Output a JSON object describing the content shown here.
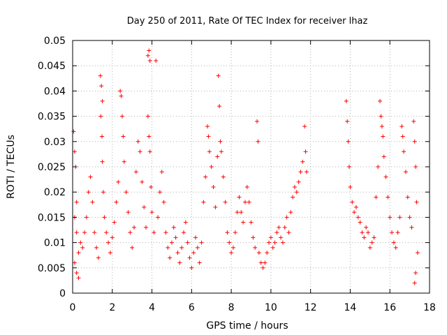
{
  "chart_data": {
    "type": "scatter",
    "title": "Day 250 of 2011, Rate Of TEC Index for receiver lhaz",
    "xlabel": "GPS time / hours",
    "ylabel": "ROTI / TECUs",
    "xlim": [
      0,
      18
    ],
    "ylim": [
      0,
      0.05
    ],
    "xticks": [
      0,
      2,
      4,
      6,
      8,
      10,
      12,
      14,
      16,
      18
    ],
    "xtick_labels": [
      "0",
      "2",
      "4",
      "6",
      "8",
      "10",
      "12",
      "14",
      "16",
      "18"
    ],
    "yticks": [
      0,
      0.005,
      0.01,
      0.015,
      0.02,
      0.025,
      0.03,
      0.035,
      0.04,
      0.045,
      0.05
    ],
    "ytick_labels": [
      "0",
      "0.005",
      "0.01",
      "0.015",
      "0.02",
      "0.025",
      "0.03",
      "0.035",
      "0.04",
      "0.045",
      "0.05"
    ],
    "grid": true,
    "marker": "plus",
    "color": "#ff0000",
    "series": [
      {
        "name": "ROTI",
        "points": [
          [
            0.05,
            0.032
          ],
          [
            0.1,
            0.028
          ],
          [
            0.15,
            0.025
          ],
          [
            0.2,
            0.018
          ],
          [
            0.1,
            0.015
          ],
          [
            0.2,
            0.012
          ],
          [
            0.3,
            0.008
          ],
          [
            0.1,
            0.006
          ],
          [
            0.2,
            0.004
          ],
          [
            0.3,
            0.003
          ],
          [
            0.4,
            0.01
          ],
          [
            0.5,
            0.009
          ],
          [
            0.6,
            0.012
          ],
          [
            0.7,
            0.015
          ],
          [
            0.8,
            0.02
          ],
          [
            0.9,
            0.023
          ],
          [
            1.0,
            0.018
          ],
          [
            1.1,
            0.012
          ],
          [
            1.2,
            0.009
          ],
          [
            1.3,
            0.007
          ],
          [
            1.4,
            0.043
          ],
          [
            1.45,
            0.041
          ],
          [
            1.5,
            0.038
          ],
          [
            1.42,
            0.035
          ],
          [
            1.48,
            0.031
          ],
          [
            1.5,
            0.026
          ],
          [
            1.55,
            0.02
          ],
          [
            1.6,
            0.015
          ],
          [
            1.7,
            0.012
          ],
          [
            1.8,
            0.01
          ],
          [
            1.9,
            0.008
          ],
          [
            2.0,
            0.011
          ],
          [
            2.1,
            0.014
          ],
          [
            2.2,
            0.018
          ],
          [
            2.3,
            0.022
          ],
          [
            2.4,
            0.04
          ],
          [
            2.45,
            0.039
          ],
          [
            2.5,
            0.035
          ],
          [
            2.55,
            0.031
          ],
          [
            2.6,
            0.026
          ],
          [
            2.7,
            0.02
          ],
          [
            2.8,
            0.016
          ],
          [
            2.9,
            0.012
          ],
          [
            3.0,
            0.009
          ],
          [
            3.1,
            0.013
          ],
          [
            3.2,
            0.024
          ],
          [
            3.3,
            0.03
          ],
          [
            3.4,
            0.028
          ],
          [
            3.5,
            0.022
          ],
          [
            3.6,
            0.017
          ],
          [
            3.7,
            0.013
          ],
          [
            3.8,
            0.047
          ],
          [
            3.85,
            0.048
          ],
          [
            3.9,
            0.046
          ],
          [
            3.8,
            0.035
          ],
          [
            3.85,
            0.031
          ],
          [
            3.9,
            0.028
          ],
          [
            3.95,
            0.021
          ],
          [
            4.0,
            0.016
          ],
          [
            4.1,
            0.012
          ],
          [
            4.2,
            0.046
          ],
          [
            4.3,
            0.015
          ],
          [
            4.4,
            0.02
          ],
          [
            4.5,
            0.024
          ],
          [
            4.6,
            0.018
          ],
          [
            4.7,
            0.012
          ],
          [
            4.8,
            0.009
          ],
          [
            4.9,
            0.007
          ],
          [
            5.0,
            0.01
          ],
          [
            5.1,
            0.013
          ],
          [
            5.2,
            0.011
          ],
          [
            5.3,
            0.008
          ],
          [
            5.4,
            0.006
          ],
          [
            5.5,
            0.009
          ],
          [
            5.6,
            0.012
          ],
          [
            5.7,
            0.014
          ],
          [
            5.8,
            0.01
          ],
          [
            5.9,
            0.007
          ],
          [
            6.0,
            0.005
          ],
          [
            6.1,
            0.008
          ],
          [
            6.2,
            0.011
          ],
          [
            6.3,
            0.009
          ],
          [
            6.4,
            0.006
          ],
          [
            6.5,
            0.01
          ],
          [
            6.6,
            0.018
          ],
          [
            6.7,
            0.023
          ],
          [
            6.8,
            0.033
          ],
          [
            6.85,
            0.031
          ],
          [
            6.9,
            0.028
          ],
          [
            7.0,
            0.025
          ],
          [
            7.1,
            0.021
          ],
          [
            7.2,
            0.017
          ],
          [
            7.3,
            0.027
          ],
          [
            7.35,
            0.043
          ],
          [
            7.4,
            0.037
          ],
          [
            7.45,
            0.03
          ],
          [
            7.5,
            0.028
          ],
          [
            7.6,
            0.023
          ],
          [
            7.7,
            0.018
          ],
          [
            7.8,
            0.012
          ],
          [
            7.9,
            0.01
          ],
          [
            8.0,
            0.008
          ],
          [
            8.1,
            0.009
          ],
          [
            8.2,
            0.012
          ],
          [
            8.3,
            0.016
          ],
          [
            8.4,
            0.019
          ],
          [
            8.5,
            0.016
          ],
          [
            8.6,
            0.014
          ],
          [
            8.7,
            0.018
          ],
          [
            8.8,
            0.021
          ],
          [
            8.9,
            0.018
          ],
          [
            9.0,
            0.014
          ],
          [
            9.1,
            0.011
          ],
          [
            9.2,
            0.009
          ],
          [
            9.3,
            0.034
          ],
          [
            9.35,
            0.03
          ],
          [
            9.4,
            0.008
          ],
          [
            9.5,
            0.006
          ],
          [
            9.6,
            0.005
          ],
          [
            9.7,
            0.006
          ],
          [
            9.8,
            0.008
          ],
          [
            9.9,
            0.01
          ],
          [
            10.0,
            0.011
          ],
          [
            10.1,
            0.009
          ],
          [
            10.2,
            0.01
          ],
          [
            10.3,
            0.012
          ],
          [
            10.4,
            0.013
          ],
          [
            10.5,
            0.011
          ],
          [
            10.6,
            0.01
          ],
          [
            10.7,
            0.013
          ],
          [
            10.8,
            0.015
          ],
          [
            10.9,
            0.012
          ],
          [
            11.0,
            0.016
          ],
          [
            11.1,
            0.019
          ],
          [
            11.2,
            0.021
          ],
          [
            11.3,
            0.02
          ],
          [
            11.4,
            0.022
          ],
          [
            11.5,
            0.024
          ],
          [
            11.6,
            0.026
          ],
          [
            11.7,
            0.033
          ],
          [
            11.75,
            0.028
          ],
          [
            11.8,
            0.024
          ],
          [
            13.8,
            0.038
          ],
          [
            13.85,
            0.034
          ],
          [
            13.9,
            0.03
          ],
          [
            13.95,
            0.025
          ],
          [
            14.0,
            0.021
          ],
          [
            14.1,
            0.018
          ],
          [
            14.2,
            0.016
          ],
          [
            14.3,
            0.017
          ],
          [
            14.4,
            0.015
          ],
          [
            14.5,
            0.014
          ],
          [
            14.6,
            0.012
          ],
          [
            14.7,
            0.011
          ],
          [
            14.8,
            0.013
          ],
          [
            14.9,
            0.012
          ],
          [
            15.0,
            0.009
          ],
          [
            15.1,
            0.01
          ],
          [
            15.2,
            0.011
          ],
          [
            15.3,
            0.019
          ],
          [
            15.4,
            0.025
          ],
          [
            15.5,
            0.038
          ],
          [
            15.55,
            0.035
          ],
          [
            15.6,
            0.033
          ],
          [
            15.65,
            0.031
          ],
          [
            15.7,
            0.027
          ],
          [
            15.8,
            0.023
          ],
          [
            15.9,
            0.019
          ],
          [
            16.0,
            0.015
          ],
          [
            16.1,
            0.012
          ],
          [
            16.2,
            0.01
          ],
          [
            16.3,
            0.009
          ],
          [
            16.4,
            0.012
          ],
          [
            16.5,
            0.015
          ],
          [
            16.6,
            0.033
          ],
          [
            16.65,
            0.031
          ],
          [
            16.7,
            0.028
          ],
          [
            16.8,
            0.024
          ],
          [
            16.9,
            0.019
          ],
          [
            17.0,
            0.015
          ],
          [
            17.1,
            0.013
          ],
          [
            17.2,
            0.034
          ],
          [
            17.25,
            0.03
          ],
          [
            17.3,
            0.025
          ],
          [
            17.35,
            0.018
          ],
          [
            17.4,
            0.008
          ],
          [
            17.3,
            0.004
          ],
          [
            17.25,
            0.002
          ]
        ]
      }
    ]
  }
}
